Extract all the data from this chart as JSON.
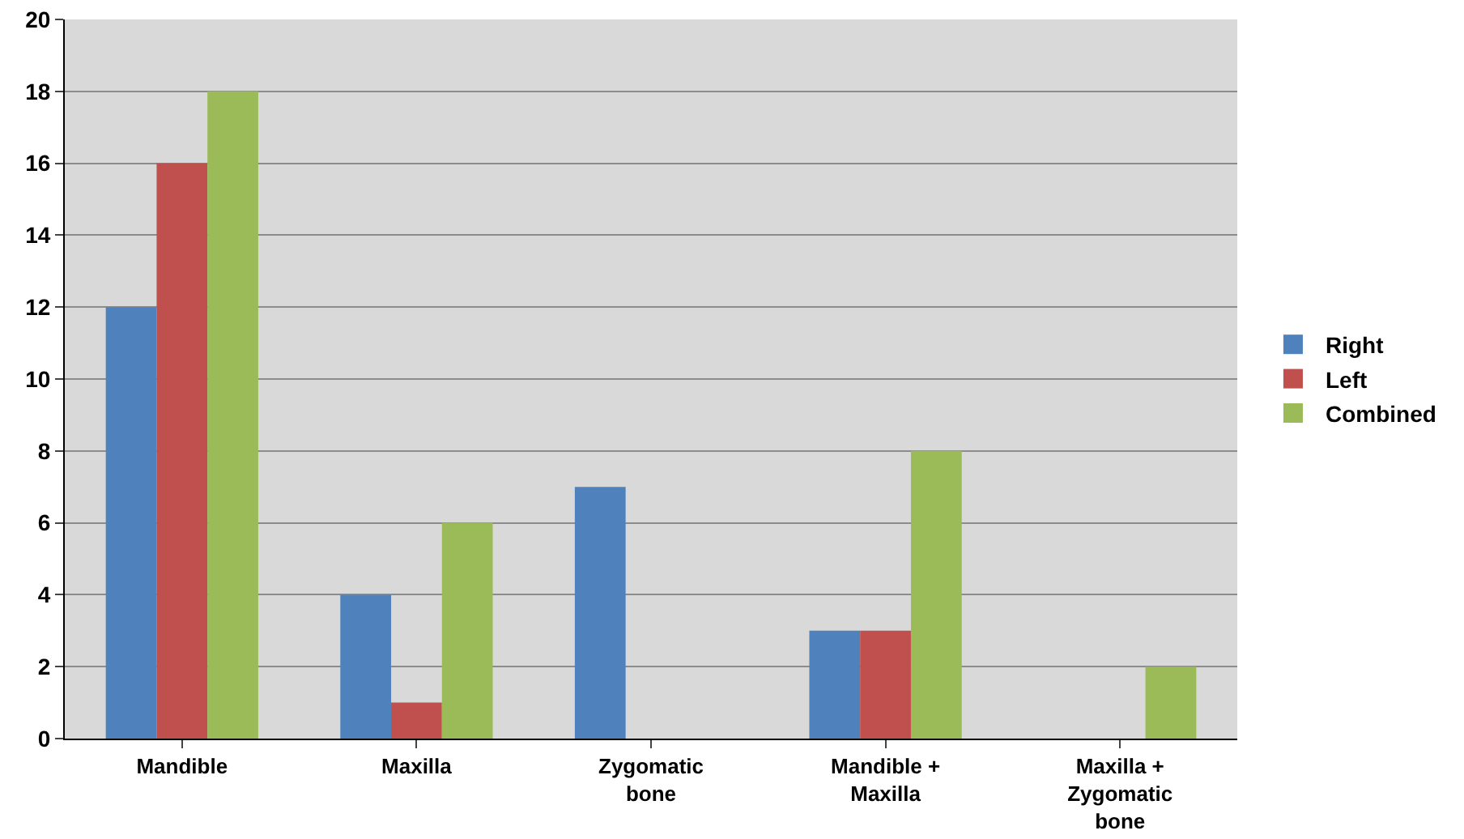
{
  "chart_data": {
    "type": "bar",
    "categories": [
      "Mandible",
      "Maxilla",
      "Zygomatic bone",
      "Mandible + Maxilla",
      "Maxilla + Zygomatic bone"
    ],
    "series": [
      {
        "name": "Right",
        "color": "#4f81bd",
        "values": [
          12,
          4,
          7,
          3,
          0
        ]
      },
      {
        "name": "Left",
        "color": "#c0504d",
        "values": [
          16,
          1,
          0,
          3,
          0
        ]
      },
      {
        "name": "Combined",
        "color": "#9bbb59",
        "values": [
          18,
          6,
          0,
          8,
          2
        ]
      }
    ],
    "ylim": [
      0,
      20
    ],
    "yticks": [
      0,
      2,
      4,
      6,
      8,
      10,
      12,
      14,
      16,
      18,
      20
    ],
    "grid": "y",
    "legend": "right"
  }
}
